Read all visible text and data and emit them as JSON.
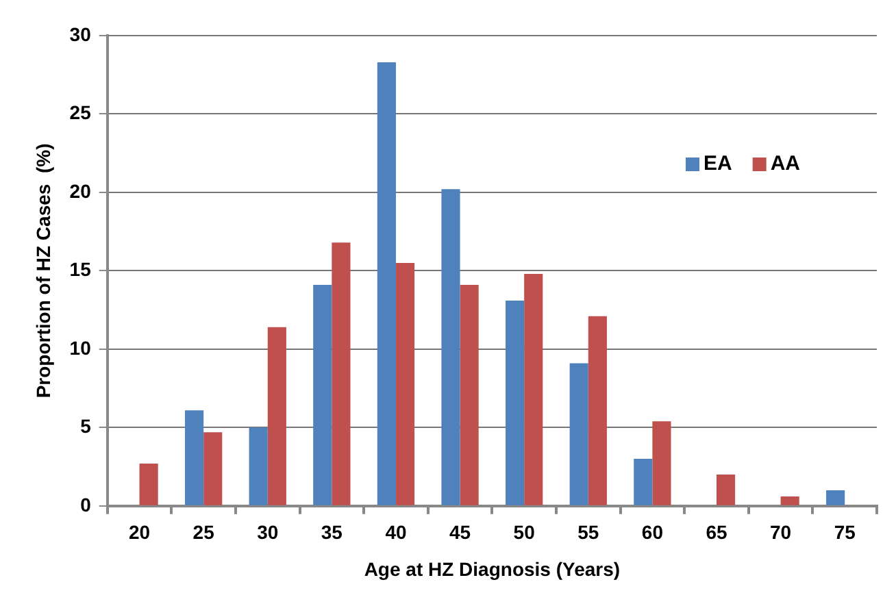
{
  "chart_data": {
    "type": "bar",
    "xlabel": "Age at HZ Diagnosis (Years)",
    "ylabel": "Proportion of HZ Cases  (%)",
    "categories": [
      "20",
      "25",
      "30",
      "35",
      "40",
      "45",
      "50",
      "55",
      "60",
      "65",
      "70",
      "75"
    ],
    "series": [
      {
        "name": "EA",
        "color": "#4f81bd",
        "values": [
          0,
          6.1,
          5.0,
          14.1,
          28.3,
          20.2,
          13.1,
          9.1,
          3.0,
          0,
          0,
          1.0
        ]
      },
      {
        "name": "AA",
        "color": "#c0504d",
        "values": [
          2.7,
          4.7,
          11.4,
          16.8,
          15.5,
          14.1,
          14.8,
          12.1,
          5.4,
          2.0,
          0.6,
          0
        ]
      }
    ],
    "ylim": [
      0,
      30
    ],
    "yticks": [
      0,
      5,
      10,
      15,
      20,
      25,
      30
    ],
    "grid": "y",
    "legend": "top right"
  }
}
